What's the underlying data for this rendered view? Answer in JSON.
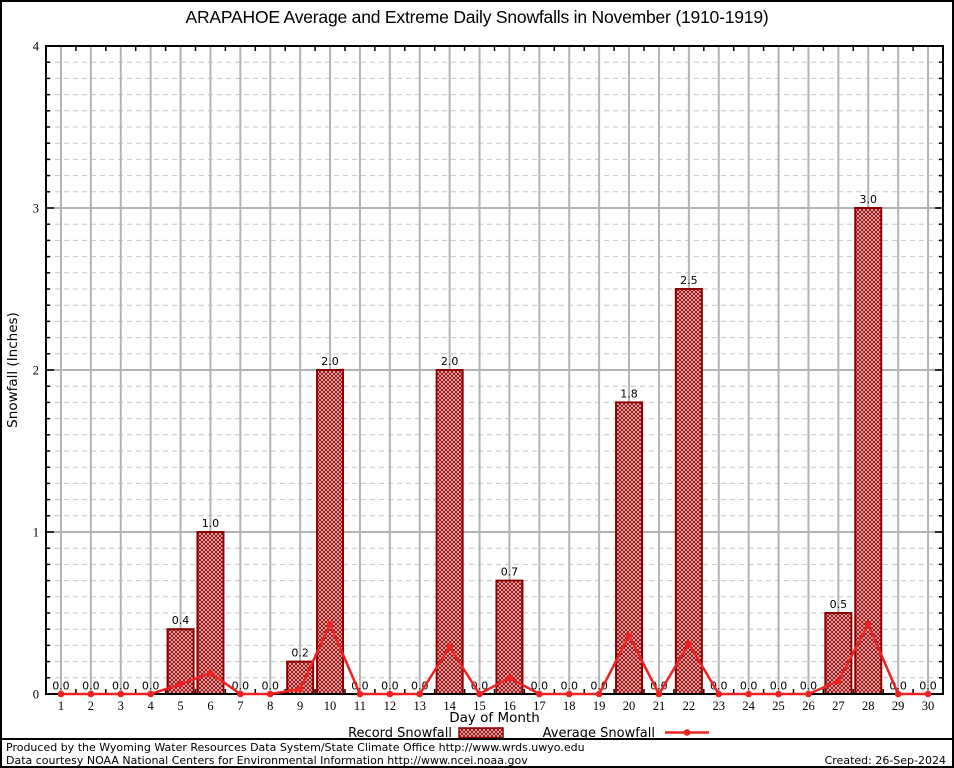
{
  "chart_data": {
    "type": "bar",
    "title": "ARAPAHOE Average and Extreme Daily Snowfalls in November (1910-1919)",
    "xlabel": "Day of Month",
    "ylabel": "Snowfall (Inches)",
    "ylim": [
      0,
      4
    ],
    "yticks": [
      0,
      1,
      2,
      3,
      4
    ],
    "grid": true,
    "legend_position": "bottom",
    "x": [
      1,
      2,
      3,
      4,
      5,
      6,
      7,
      8,
      9,
      10,
      11,
      12,
      13,
      14,
      15,
      16,
      17,
      18,
      19,
      20,
      21,
      22,
      23,
      24,
      25,
      26,
      27,
      28,
      29,
      30
    ],
    "series": [
      {
        "name": "Record Snowfall",
        "type": "bar",
        "values": [
          0.0,
          0.0,
          0.0,
          0.0,
          0.4,
          1.0,
          0.0,
          0.0,
          0.2,
          2.0,
          0.0,
          0.0,
          0.0,
          2.0,
          0.0,
          0.7,
          0.0,
          0.0,
          0.0,
          1.8,
          0.0,
          2.5,
          0.0,
          0.0,
          0.0,
          0.0,
          0.5,
          3.0,
          0.0,
          0.0
        ]
      },
      {
        "name": "Average Snowfall",
        "type": "line",
        "values": [
          0.0,
          0.0,
          0.0,
          0.0,
          0.06,
          0.13,
          0.0,
          0.0,
          0.03,
          0.43,
          0.0,
          0.0,
          0.0,
          0.29,
          0.0,
          0.1,
          0.0,
          0.0,
          0.0,
          0.36,
          0.0,
          0.31,
          0.0,
          0.0,
          0.0,
          0.0,
          0.08,
          0.43,
          0.0,
          0.0
        ]
      }
    ],
    "colors": {
      "bar_edge": "#8b0000",
      "bar_pattern": "#a01414",
      "line": "#ee2222",
      "grid_major": "#b3b3b3",
      "grid_minor": "#c6c6c6",
      "border": "#000000"
    }
  },
  "footer": {
    "line1": "Produced by the Wyoming Water Resources Data System/State Climate Office http://www.wrds.uwyo.edu",
    "line2": "Data courtesy NOAA National Centers for Environmental Information http://www.ncei.noaa.gov",
    "created": "Created: 26-Sep-2024"
  }
}
